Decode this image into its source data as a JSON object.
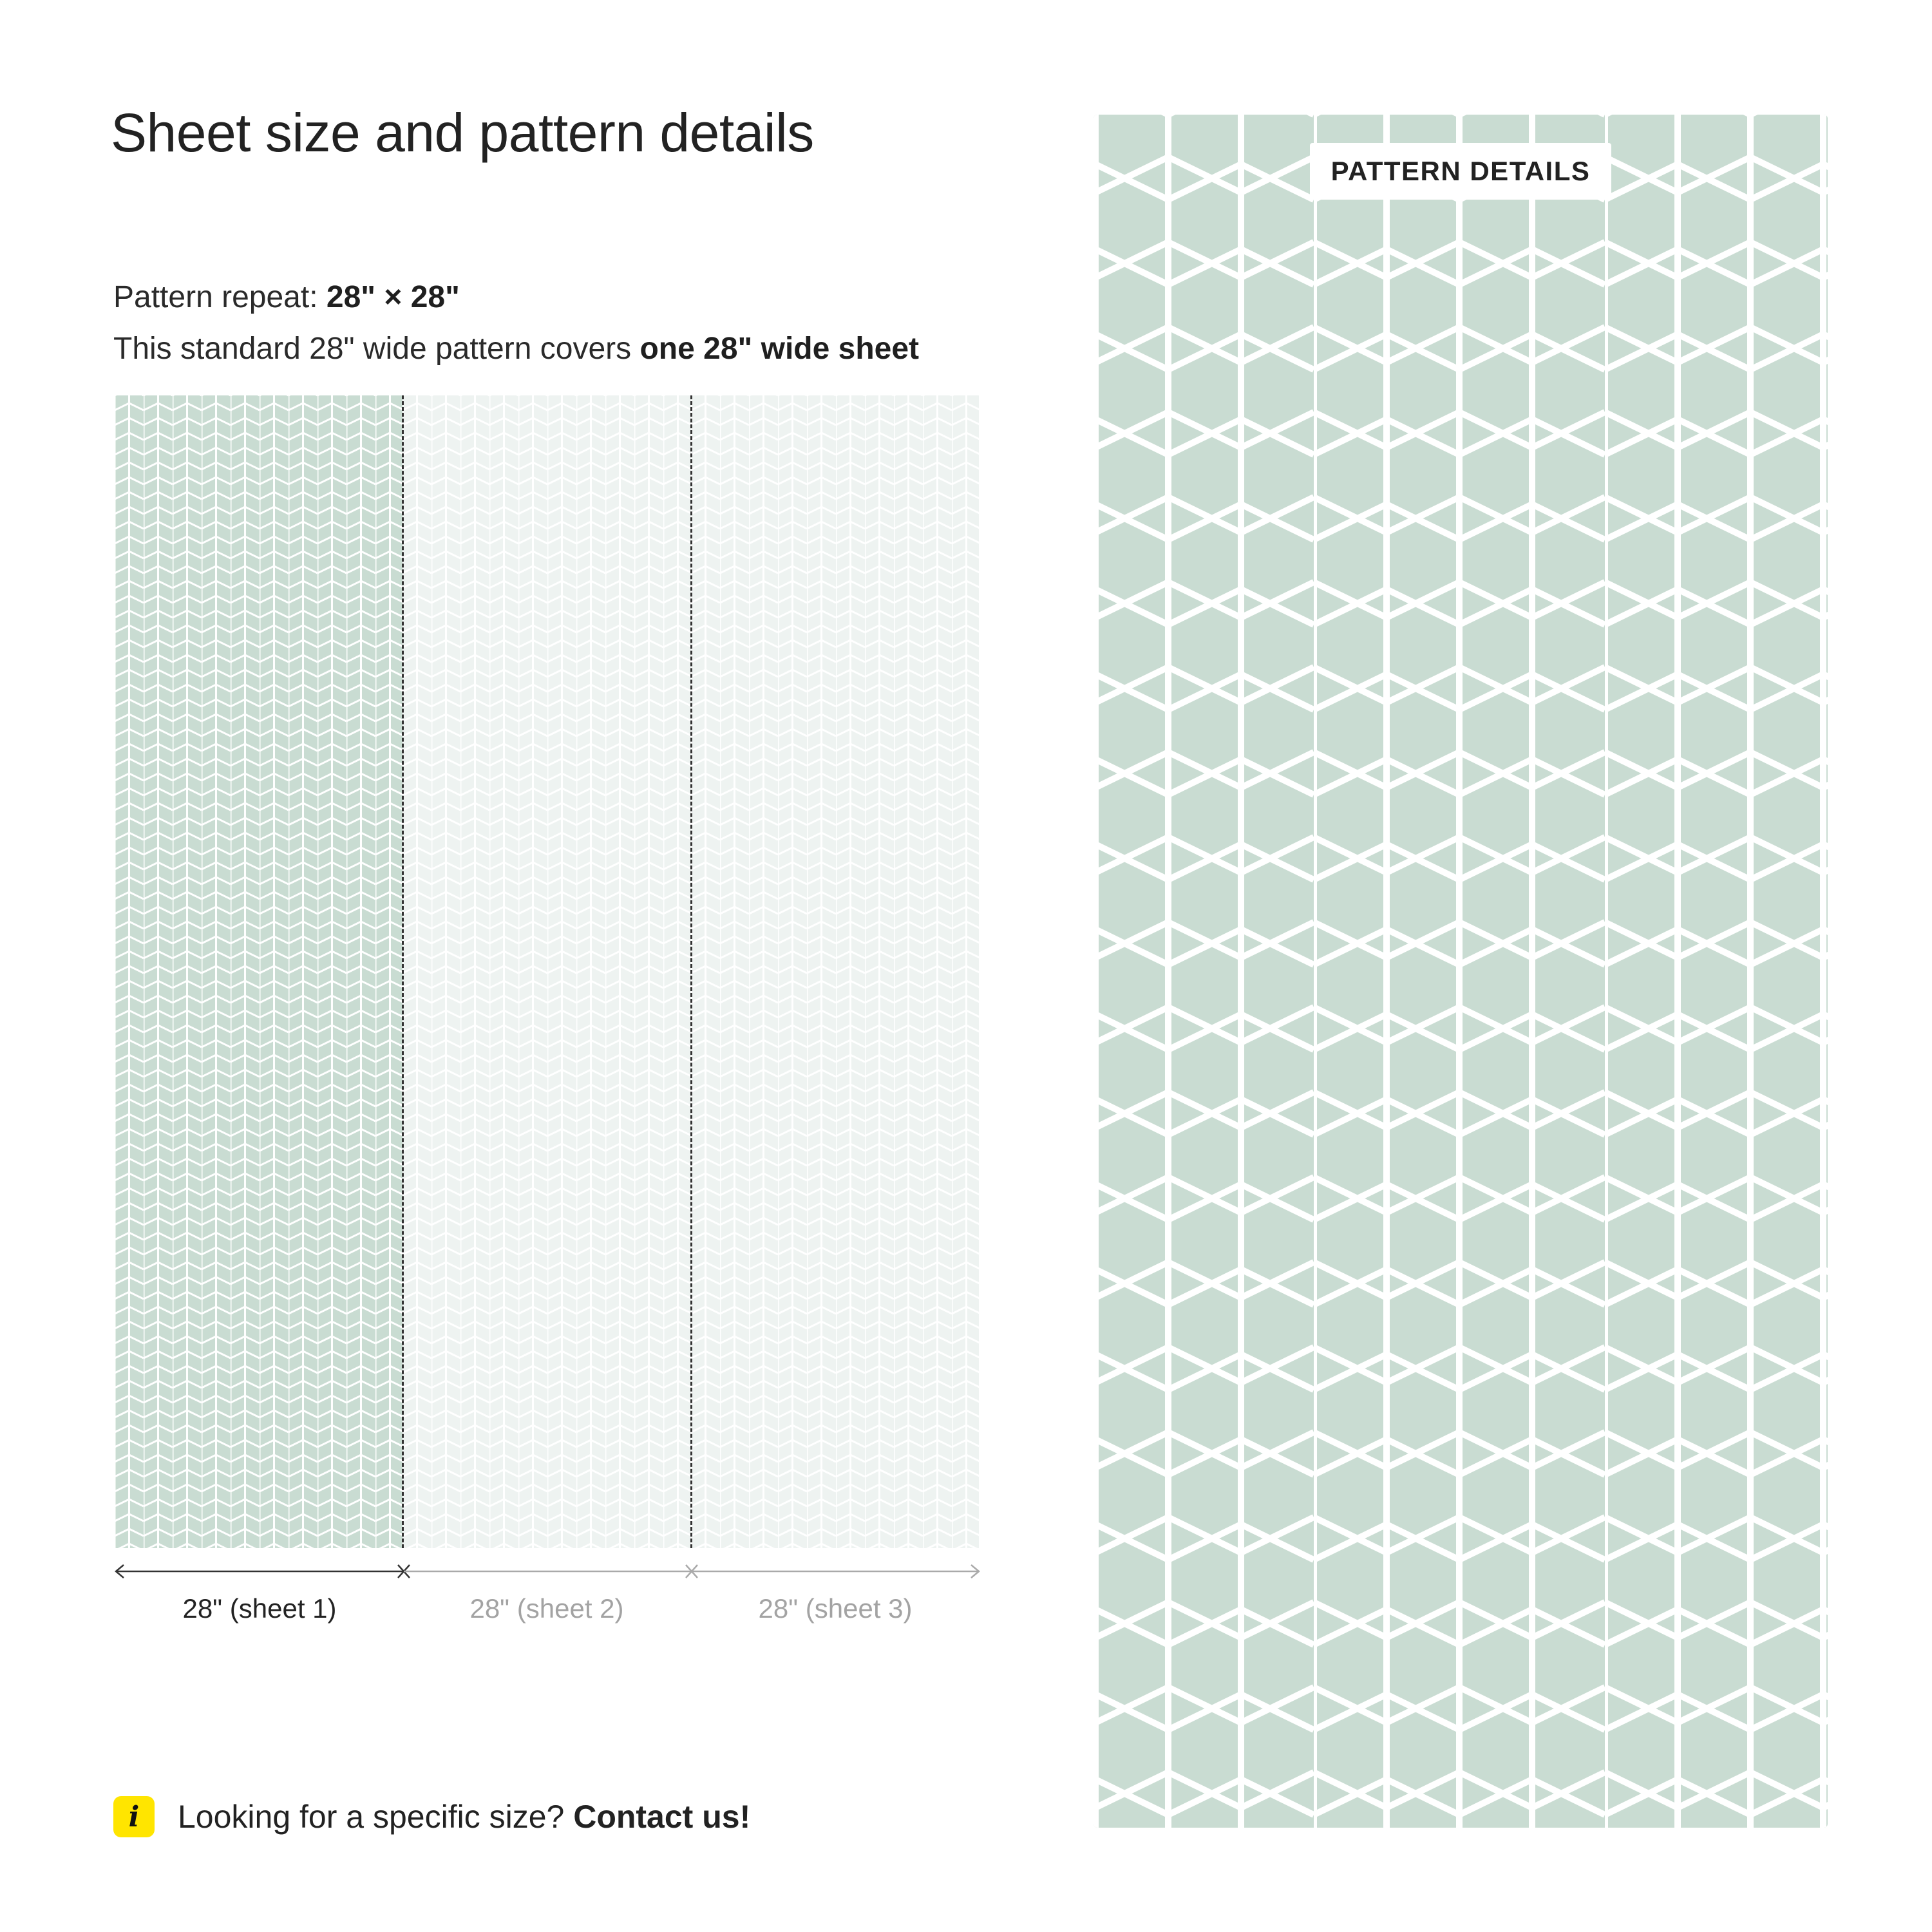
{
  "header": {
    "title": "Sheet size and pattern details"
  },
  "pattern_info": {
    "repeat_label": "Pattern repeat: ",
    "repeat_value": "28\" × 28\"",
    "covers_text": "This standard 28\" wide pattern covers ",
    "covers_value": "one 28\" wide sheet"
  },
  "sheets": [
    {
      "label": "28\" (sheet 1)",
      "active": true
    },
    {
      "label": "28\" (sheet 2)",
      "active": false
    },
    {
      "label": "28\" (sheet 3)",
      "active": false
    }
  ],
  "contact": {
    "icon": "info-icon",
    "icon_glyph": "i",
    "prompt": "Looking for a specific size? ",
    "link": "Contact us!"
  },
  "detail_panel": {
    "badge": "PATTERN DETAILS"
  },
  "colors": {
    "pattern_green": "#c9dcd2",
    "pattern_faded": "#eef3f1",
    "accent_yellow": "#ffe500",
    "line_white": "#ffffff"
  },
  "icons": [
    "info-icon",
    "dimension-arrow-icon"
  ]
}
